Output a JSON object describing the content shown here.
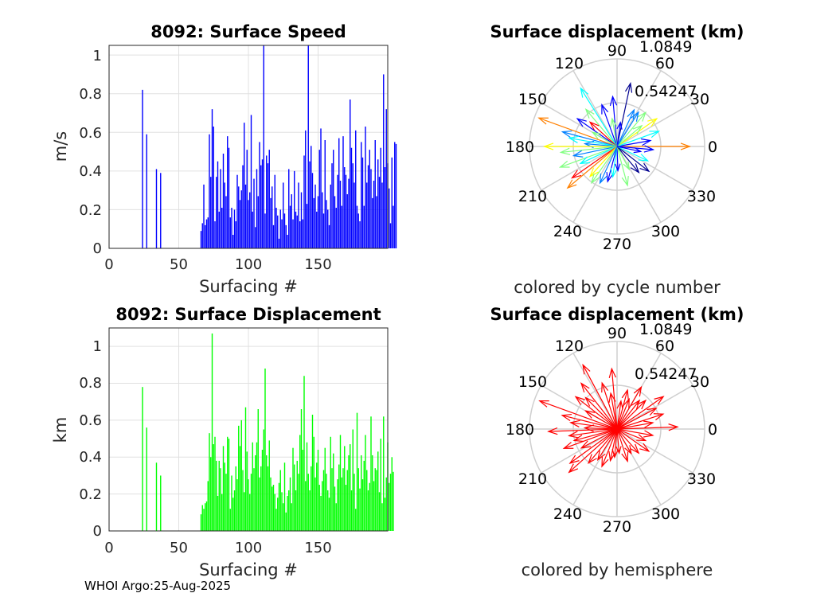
{
  "footer": "WHOI Argo:25-Aug-2025",
  "chart_data": [
    {
      "type": "bar",
      "id": "speed",
      "title": "8092: Surface Speed",
      "xlabel": "Surfacing #",
      "ylabel": "m/s",
      "xlim": [
        0,
        200
      ],
      "ylim": [
        0,
        1.05
      ],
      "xticks": [
        "0",
        "50",
        "100",
        "150"
      ],
      "yticks": [
        "0",
        "0.2",
        "0.4",
        "0.6",
        "0.8",
        "1"
      ],
      "color": "#0000ff",
      "values": [
        0,
        0,
        0,
        0,
        0,
        0,
        0,
        0,
        0,
        0,
        0,
        0,
        0,
        0,
        0,
        0,
        0,
        0,
        0,
        0,
        0,
        0,
        0,
        0.82,
        0,
        0,
        0.59,
        0,
        0,
        0,
        0,
        0,
        0,
        0.41,
        0,
        0,
        0.39,
        0,
        0,
        0,
        0,
        0,
        0,
        0,
        0,
        0,
        0,
        0,
        0,
        0,
        0,
        0,
        0,
        0,
        0,
        0,
        0,
        0,
        0,
        0,
        0,
        0,
        0,
        0,
        0,
        0.09,
        0.13,
        0.33,
        0.12,
        0.15,
        0.16,
        0.59,
        0.37,
        0.72,
        0.63,
        0.14,
        0.37,
        0.45,
        0.19,
        0.41,
        0.21,
        0.49,
        0.34,
        0.27,
        0.58,
        0.52,
        0.16,
        0.21,
        0.07,
        0.2,
        0.14,
        0.38,
        0.32,
        0.25,
        0.3,
        0.43,
        0.65,
        0.33,
        0.51,
        0.25,
        0.29,
        0.69,
        0.19,
        0.36,
        0.11,
        0.41,
        0.27,
        0.55,
        0.43,
        0.46,
        1.05,
        0.18,
        0.48,
        0.44,
        0.51,
        0.26,
        0.32,
        0.12,
        0.38,
        0.21,
        0.17,
        0.05,
        0.2,
        0.15,
        0.34,
        0.18,
        0.12,
        0.07,
        0.41,
        0.22,
        0.28,
        0.15,
        0.4,
        0.19,
        0.17,
        0.34,
        0.14,
        0.29,
        0.15,
        0.48,
        0.61,
        0.23,
        1.05,
        0.45,
        0.53,
        0.39,
        0.26,
        0.33,
        0.19,
        0.27,
        0.51,
        0.62,
        0.29,
        0.18,
        0.56,
        0.25,
        0.2,
        0.12,
        0.33,
        0.44,
        0.51,
        0.27,
        0.21,
        0.38,
        0.57,
        0.35,
        0.22,
        0.58,
        0.42,
        0.38,
        0.28,
        0.36,
        0.77,
        0.52,
        0.44,
        0.34,
        0.61,
        0.22,
        0.18,
        0.14,
        0.55,
        0.47,
        0.22,
        0.63,
        0.34,
        0.43,
        0.51,
        0.41,
        0.26,
        0.35,
        0.56,
        0.27,
        0.46,
        0.37,
        0.52,
        0.34,
        0.9,
        0.42,
        0.72,
        0.44,
        0.31,
        0.13,
        0.47,
        0.22,
        0.55,
        0.54
      ]
    },
    {
      "type": "bar",
      "id": "disp",
      "title": "8092: Surface Displacement",
      "xlabel": "Surfacing #",
      "ylabel": "km",
      "xlim": [
        0,
        200
      ],
      "ylim": [
        0,
        1.1
      ],
      "xticks": [
        "0",
        "50",
        "100",
        "150"
      ],
      "yticks": [
        "0",
        "0.2",
        "0.4",
        "0.6",
        "0.8",
        "1"
      ],
      "color": "#00ff00",
      "values": [
        0,
        0,
        0,
        0,
        0,
        0,
        0,
        0,
        0,
        0,
        0,
        0,
        0,
        0,
        0,
        0,
        0,
        0,
        0,
        0,
        0,
        0,
        0,
        0.78,
        0,
        0,
        0.56,
        0,
        0,
        0,
        0,
        0,
        0,
        0.37,
        0,
        0,
        0.3,
        0,
        0,
        0,
        0,
        0,
        0,
        0,
        0,
        0,
        0,
        0,
        0,
        0,
        0,
        0,
        0,
        0,
        0,
        0,
        0,
        0,
        0,
        0,
        0,
        0,
        0,
        0,
        0,
        0.09,
        0.14,
        0.12,
        0.15,
        0.16,
        0.27,
        0.53,
        0.4,
        1.07,
        0.47,
        0.51,
        0.38,
        0.19,
        0.38,
        0.34,
        0.2,
        0.46,
        0.37,
        0.31,
        0.51,
        0.5,
        0.12,
        0.3,
        0.18,
        0.22,
        0.35,
        0.28,
        0.57,
        0.46,
        0.6,
        0.33,
        0.21,
        0.67,
        0.43,
        0.28,
        0.2,
        0.31,
        0.48,
        0.34,
        0.41,
        0.48,
        0.66,
        0.29,
        0.35,
        0.44,
        0.55,
        0.88,
        0.41,
        0.35,
        0.49,
        0.29,
        0.24,
        0.25,
        0.2,
        0.12,
        0.18,
        0.26,
        0.33,
        0.21,
        0.15,
        0.37,
        0.1,
        0.19,
        0.22,
        0.29,
        0.15,
        0.45,
        0.36,
        0.22,
        0.38,
        0.31,
        0.52,
        0.66,
        0.44,
        0.84,
        0.27,
        0.48,
        0.31,
        0.22,
        0.35,
        0.63,
        0.51,
        0.29,
        0.37,
        0.44,
        0.25,
        0.19,
        0.27,
        0.33,
        0.45,
        0.31,
        0.22,
        0.18,
        0.51,
        0.34,
        0.42,
        0.24,
        0.15,
        0.28,
        0.36,
        0.52,
        0.29,
        0.34,
        0.46,
        0.25,
        0.33,
        0.41,
        0.47,
        0.22,
        0.55,
        0.31,
        0.12,
        0.64,
        0.34,
        0.23,
        0.41,
        0.28,
        0.38,
        0.52,
        0.33,
        0.22,
        0.26,
        0.62,
        0.41,
        0.27,
        0.34,
        0.33,
        0.43,
        0.21,
        0.5,
        0.15,
        0.62,
        0.18,
        0.29,
        0.48,
        0.26,
        0.31,
        0.4,
        0.32
      ]
    },
    {
      "type": "compass",
      "id": "compass1",
      "title": "Surface displacement (km)",
      "caption": "colored by cycle number",
      "rlim": [
        0,
        1.0849
      ],
      "rticks": [
        "0.54247",
        "1.0849"
      ],
      "angle_labels": [
        "0",
        "30",
        "60",
        "90",
        "120",
        "150",
        "180",
        "210",
        "240",
        "270",
        "300",
        "330"
      ],
      "colormap": [
        "#00008f",
        "#0000ff",
        "#0080ff",
        "#00ffff",
        "#80ff80",
        "#ffff00",
        "#ff8000",
        "#ff0000",
        "#800000"
      ],
      "arrows": [
        {
          "angle": 0,
          "r": 0.9,
          "c": 0.7
        },
        {
          "angle": 10,
          "r": 0.42,
          "c": 0.2
        },
        {
          "angle": 20,
          "r": 0.55,
          "c": 0.35
        },
        {
          "angle": 35,
          "r": 0.6,
          "c": 0.65
        },
        {
          "angle": 40,
          "r": 0.4,
          "c": 0.55
        },
        {
          "angle": 50,
          "r": 0.55,
          "c": 0.55
        },
        {
          "angle": 58,
          "r": 0.5,
          "c": 0.3
        },
        {
          "angle": 65,
          "r": 0.5,
          "c": 0.25
        },
        {
          "angle": 78,
          "r": 0.8,
          "c": 0.05
        },
        {
          "angle": 82,
          "r": 0.3,
          "c": 0.2
        },
        {
          "angle": 95,
          "r": 0.62,
          "c": 0.18
        },
        {
          "angle": 100,
          "r": 0.35,
          "c": 0.45
        },
        {
          "angle": 110,
          "r": 0.55,
          "c": 0.15
        },
        {
          "angle": 122,
          "r": 0.85,
          "c": 0.35
        },
        {
          "angle": 130,
          "r": 0.6,
          "c": 0.45
        },
        {
          "angle": 138,
          "r": 0.45,
          "c": 0.8
        },
        {
          "angle": 145,
          "r": 0.6,
          "c": 0.12
        },
        {
          "angle": 150,
          "r": 0.35,
          "c": 0.5
        },
        {
          "angle": 160,
          "r": 1.03,
          "c": 0.72
        },
        {
          "angle": 165,
          "r": 0.7,
          "c": 0.3
        },
        {
          "angle": 170,
          "r": 0.6,
          "c": 0.4
        },
        {
          "angle": 175,
          "r": 0.4,
          "c": 0.25
        },
        {
          "angle": 180,
          "r": 0.9,
          "c": 0.58
        },
        {
          "angle": 186,
          "r": 0.7,
          "c": 0.5
        },
        {
          "angle": 192,
          "r": 0.55,
          "c": 0.3
        },
        {
          "angle": 200,
          "r": 0.75,
          "c": 0.5
        },
        {
          "angle": 205,
          "r": 0.5,
          "c": 0.35
        },
        {
          "angle": 215,
          "r": 0.68,
          "c": 0.82
        },
        {
          "angle": 220,
          "r": 0.8,
          "c": 0.72
        },
        {
          "angle": 228,
          "r": 0.5,
          "c": 0.6
        },
        {
          "angle": 235,
          "r": 0.55,
          "c": 0.45
        },
        {
          "angle": 245,
          "r": 0.5,
          "c": 0.3
        },
        {
          "angle": 255,
          "r": 0.45,
          "c": 0.2
        },
        {
          "angle": 262,
          "r": 0.38,
          "c": 0.35
        },
        {
          "angle": 272,
          "r": 0.3,
          "c": 0.15
        },
        {
          "angle": 285,
          "r": 0.5,
          "c": 0.45
        },
        {
          "angle": 298,
          "r": 0.32,
          "c": 0.55
        },
        {
          "angle": 310,
          "r": 0.42,
          "c": 0.05
        },
        {
          "angle": 322,
          "r": 0.5,
          "c": 0.05
        },
        {
          "angle": 335,
          "r": 0.42,
          "c": 0.35
        },
        {
          "angle": 348,
          "r": 0.3,
          "c": 0.15
        },
        {
          "angle": 355,
          "r": 0.45,
          "c": 0.15
        }
      ]
    },
    {
      "type": "compass",
      "id": "compass2",
      "title": "Surface displacement (km)",
      "caption": "colored by hemisphere",
      "rlim": [
        0,
        1.0849
      ],
      "rticks": [
        "0.54247",
        "1.0849"
      ],
      "angle_labels": [
        "0",
        "30",
        "60",
        "90",
        "120",
        "150",
        "180",
        "210",
        "240",
        "270",
        "300",
        "330"
      ],
      "color": "#ff0000",
      "arrows": [
        {
          "angle": 2,
          "r": 0.75
        },
        {
          "angle": 10,
          "r": 0.45
        },
        {
          "angle": 18,
          "r": 0.6
        },
        {
          "angle": 28,
          "r": 0.55
        },
        {
          "angle": 35,
          "r": 0.7
        },
        {
          "angle": 45,
          "r": 0.5
        },
        {
          "angle": 52,
          "r": 0.45
        },
        {
          "angle": 60,
          "r": 0.6
        },
        {
          "angle": 68,
          "r": 0.4
        },
        {
          "angle": 75,
          "r": 0.5
        },
        {
          "angle": 82,
          "r": 0.35
        },
        {
          "angle": 95,
          "r": 0.75
        },
        {
          "angle": 100,
          "r": 0.45
        },
        {
          "angle": 108,
          "r": 0.6
        },
        {
          "angle": 118,
          "r": 0.9
        },
        {
          "angle": 128,
          "r": 0.72
        },
        {
          "angle": 135,
          "r": 0.55
        },
        {
          "angle": 142,
          "r": 0.65
        },
        {
          "angle": 150,
          "r": 0.45
        },
        {
          "angle": 160,
          "r": 1.02
        },
        {
          "angle": 166,
          "r": 0.7
        },
        {
          "angle": 172,
          "r": 0.58
        },
        {
          "angle": 178,
          "r": 0.4
        },
        {
          "angle": 182,
          "r": 0.85
        },
        {
          "angle": 188,
          "r": 0.6
        },
        {
          "angle": 195,
          "r": 0.55
        },
        {
          "angle": 200,
          "r": 0.7
        },
        {
          "angle": 208,
          "r": 0.5
        },
        {
          "angle": 216,
          "r": 0.72
        },
        {
          "angle": 222,
          "r": 0.8
        },
        {
          "angle": 230,
          "r": 0.55
        },
        {
          "angle": 238,
          "r": 0.45
        },
        {
          "angle": 248,
          "r": 0.5
        },
        {
          "angle": 258,
          "r": 0.4
        },
        {
          "angle": 265,
          "r": 0.35
        },
        {
          "angle": 275,
          "r": 0.3
        },
        {
          "angle": 288,
          "r": 0.42
        },
        {
          "angle": 300,
          "r": 0.35
        },
        {
          "angle": 312,
          "r": 0.4
        },
        {
          "angle": 325,
          "r": 0.48
        },
        {
          "angle": 338,
          "r": 0.38
        },
        {
          "angle": 350,
          "r": 0.45
        }
      ]
    }
  ]
}
